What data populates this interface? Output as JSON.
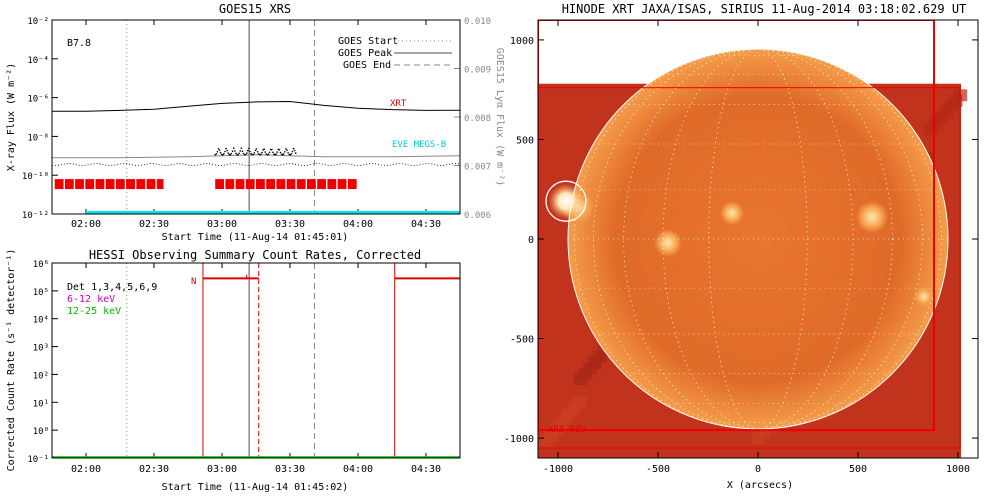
{
  "chart_data": [
    {
      "type": "line",
      "title": "GOES15 XRS",
      "xlabel": "Start Time (11-Aug-14 01:45:01)",
      "ylabel": "X-ray Flux (W m⁻²)",
      "y2label": "GOES15 Lyα Flux (W m⁻²)",
      "x_tick_labels": [
        "02:00",
        "02:30",
        "03:00",
        "03:30",
        "04:00",
        "04:30"
      ],
      "x_tick_hours": [
        2.0,
        2.5,
        3.0,
        3.5,
        4.0,
        4.5
      ],
      "xlim_hours": [
        1.75,
        4.75
      ],
      "ylim_log": [
        -12,
        -2
      ],
      "y_tick_labels": [
        "10⁻¹²",
        "10⁻¹⁰",
        "10⁻⁸",
        "10⁻⁶",
        "10⁻⁴",
        "10⁻²"
      ],
      "y_tick_exponents": [
        -12,
        -10,
        -8,
        -6,
        -4,
        -2
      ],
      "y2lim": [
        0.006,
        0.01
      ],
      "y2_tick_labels": [
        "0.006",
        "0.007",
        "0.008",
        "0.009",
        "0.010"
      ],
      "y2_tick_values": [
        0.006,
        0.007,
        0.008,
        0.009,
        0.01
      ],
      "class_label": "B7.8",
      "annotations": {
        "xrt": "XRT",
        "eve": "EVE MEGS-B"
      },
      "legend": [
        {
          "label": "GOES Start",
          "style": "dotted"
        },
        {
          "label": "GOES Peak",
          "style": "solid"
        },
        {
          "label": "GOES End",
          "style": "dashed"
        }
      ],
      "legend_position": "top-right",
      "event_lines_hours": {
        "start": 2.3,
        "peak": 3.2,
        "end": 3.68
      },
      "series": [
        {
          "name": "long",
          "color": "#000000",
          "x": [
            1.75,
            2.0,
            2.25,
            2.5,
            2.75,
            3.0,
            3.25,
            3.5,
            3.75,
            4.0,
            4.25,
            4.5,
            4.75
          ],
          "log_y": [
            -6.7,
            -6.7,
            -6.66,
            -6.6,
            -6.45,
            -6.3,
            -6.22,
            -6.2,
            -6.4,
            -6.55,
            -6.62,
            -6.66,
            -6.65
          ]
        },
        {
          "name": "short",
          "color": "#888888",
          "x": [
            1.75,
            2.25,
            2.75,
            3.0,
            3.25,
            3.5,
            3.75,
            4.25,
            4.75
          ],
          "log_y": [
            -9.1,
            -9.1,
            -9.05,
            -9.0,
            -8.95,
            -9.0,
            -9.05,
            -9.05,
            -9.0
          ]
        }
      ],
      "red_bars": [
        [
          1.77,
          2.57
        ],
        [
          2.95,
          4.0
        ]
      ],
      "cyan_bar": [
        2.0,
        4.75
      ]
    },
    {
      "type": "line",
      "title": "HESSI Observing Summary Count Rates, Corrected",
      "xlabel": "Start Time (11-Aug-14 01:45:02)",
      "ylabel": "Corrected Count Rate (s⁻¹ detector⁻¹)",
      "x_tick_labels": [
        "02:00",
        "02:30",
        "03:00",
        "03:30",
        "04:00",
        "04:30"
      ],
      "x_tick_hours": [
        2.0,
        2.5,
        3.0,
        3.5,
        4.0,
        4.5
      ],
      "xlim_hours": [
        1.75,
        4.75
      ],
      "ylim_log": [
        -1,
        6
      ],
      "y_tick_labels": [
        "10⁻¹",
        "10⁰",
        "10¹",
        "10²",
        "10³",
        "10⁴",
        "10⁵",
        "10⁶"
      ],
      "y_tick_exponents": [
        -1,
        0,
        1,
        2,
        3,
        4,
        5,
        6
      ],
      "legend": [
        {
          "label": "Det 1,3,4,5,6,9",
          "color": "#000000"
        },
        {
          "label": "6-12 keV",
          "color": "#cc00cc"
        },
        {
          "label": "12-25 keV",
          "color": "#00bb00"
        }
      ],
      "night_label": "N",
      "night_intervals": [
        [
          2.86,
          3.27
        ],
        [
          4.27,
          4.75
        ]
      ],
      "night_level_log": 5.45,
      "event_lines_hours": {
        "start": 2.3,
        "peak": 3.2,
        "end": 3.68
      }
    },
    {
      "type": "image",
      "title": "HINODE XRT JAXA/ISAS, SIRIUS 11-Aug-2014 03:18:02.629 UT",
      "xlabel": "X (arcsecs)",
      "x_tick_labels": [
        "-1000",
        "-500",
        "0",
        "500",
        "1000"
      ],
      "x_tick_values": [
        -1000,
        -500,
        0,
        500,
        1000
      ],
      "xlim": [
        -1100,
        1100
      ],
      "y_tick_labels": [
        "-1000",
        "-500",
        "0",
        "500",
        "1000"
      ],
      "y_tick_values": [
        -1000,
        -500,
        0,
        500,
        1000
      ],
      "ylim": [
        -1100,
        1100
      ],
      "fov_label": "XRT FOV",
      "fov_box": [
        -1100,
        -960,
        880,
        1100
      ],
      "disk_radius_arcsec": 950,
      "flare_circle": {
        "x": -960,
        "y": 190,
        "r": 100
      }
    }
  ]
}
